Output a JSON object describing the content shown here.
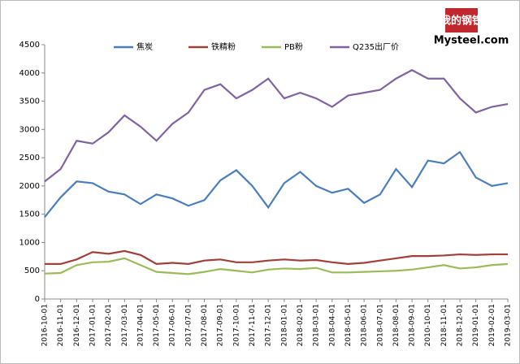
{
  "chart_data": {
    "type": "line",
    "categories": [
      "2016-10-01",
      "2016-11-01",
      "2016-12-01",
      "2017-01-01",
      "2017-02-01",
      "2017-03-01",
      "2017-04-01",
      "2017-05-01",
      "2017-06-01",
      "2017-07-01",
      "2017-08-01",
      "2017-09-01",
      "2017-10-01",
      "2017-11-01",
      "2017-12-01",
      "2018-01-01",
      "2018-02-01",
      "2018-03-01",
      "2018-04-01",
      "2018-05-01",
      "2018-06-01",
      "2018-07-01",
      "2018-08-01",
      "2018-09-01",
      "2010-10-01",
      "2018-11-01",
      "2018-12-01",
      "2019-01-01",
      "2019-02-01",
      "2019-03-01"
    ],
    "series": [
      {
        "name": "焦炭",
        "color": "#4a7ebb",
        "values": [
          1450,
          1800,
          2080,
          2050,
          1900,
          1850,
          1680,
          1850,
          1780,
          1650,
          1750,
          2100,
          2280,
          2000,
          1620,
          2050,
          2250,
          2000,
          1880,
          1950,
          1700,
          1850,
          2300,
          1980,
          2450,
          2400,
          2600,
          2150,
          2000,
          2050
        ]
      },
      {
        "name": "铁精粉",
        "color": "#a0403b",
        "values": [
          620,
          620,
          700,
          830,
          800,
          850,
          780,
          620,
          640,
          620,
          680,
          700,
          650,
          650,
          680,
          700,
          680,
          690,
          650,
          620,
          640,
          680,
          720,
          760,
          760,
          770,
          790,
          780,
          790,
          790
        ]
      },
      {
        "name": "PB粉",
        "color": "#9bbb59",
        "values": [
          450,
          460,
          600,
          650,
          660,
          720,
          600,
          480,
          460,
          440,
          480,
          530,
          500,
          470,
          520,
          540,
          530,
          550,
          470,
          470,
          480,
          490,
          500,
          520,
          560,
          600,
          540,
          560,
          600,
          620
        ]
      },
      {
        "name": "Q235出厂价",
        "color": "#7f63a0",
        "values": [
          2080,
          2300,
          2800,
          2750,
          2950,
          3250,
          3050,
          2800,
          3100,
          3300,
          3700,
          3800,
          3550,
          3700,
          3900,
          3550,
          3650,
          3550,
          3400,
          3600,
          3650,
          3700,
          3900,
          4050,
          3900,
          3900,
          3550,
          3300,
          3400,
          3450
        ]
      }
    ],
    "ylim": [
      0,
      4500
    ],
    "yticks": [
      0,
      500,
      1000,
      1500,
      2000,
      2500,
      3000,
      3500,
      4000,
      4500
    ],
    "grid": false,
    "legend": "top"
  },
  "logo": {
    "brand": "我的钢铁",
    "site": "Mysteel.com"
  }
}
